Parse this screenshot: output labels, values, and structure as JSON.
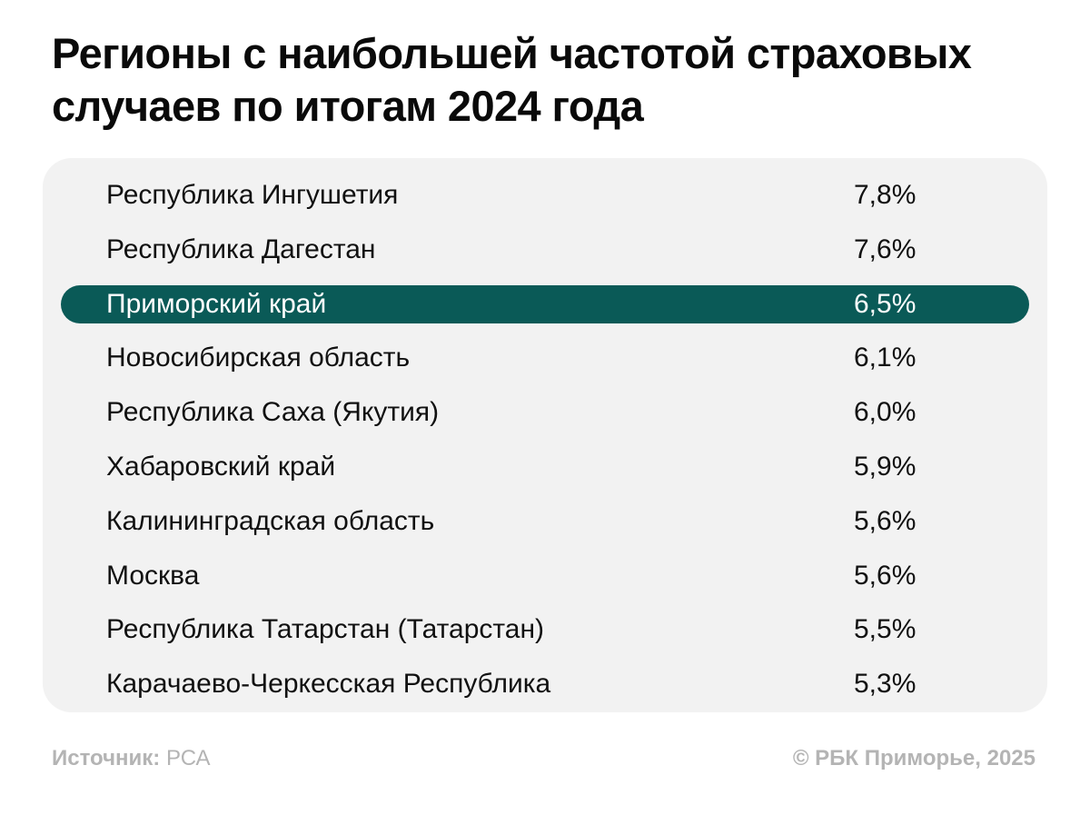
{
  "title": "Регионы с наибольшей частотой страховых случаев по итогам 2024 года",
  "colors": {
    "highlight_bg": "#0a5a57",
    "highlight_text": "#ffffff",
    "panel_bg": "#f2f2f2",
    "footer_text": "#b4b4b4"
  },
  "chart_data": {
    "type": "table",
    "title": "Регионы с наибольшей частотой страховых случаев по итогам 2024 года",
    "rows": [
      {
        "region": "Республика Ингушетия",
        "value": "7,8%",
        "highlight": false
      },
      {
        "region": "Республика Дагестан",
        "value": "7,6%",
        "highlight": false
      },
      {
        "region": "Приморский край",
        "value": "6,5%",
        "highlight": true
      },
      {
        "region": "Новосибирская область",
        "value": "6,1%",
        "highlight": false
      },
      {
        "region": "Республика Саха (Якутия)",
        "value": "6,0%",
        "highlight": false
      },
      {
        "region": "Хабаровский край",
        "value": "5,9%",
        "highlight": false
      },
      {
        "region": "Калининградская область",
        "value": "5,6%",
        "highlight": false
      },
      {
        "region": "Москва",
        "value": "5,6%",
        "highlight": false
      },
      {
        "region": "Республика Татарстан (Татарстан)",
        "value": "5,5%",
        "highlight": false
      },
      {
        "region": "Карачаево-Черкесская Республика",
        "value": "5,3%",
        "highlight": false
      }
    ]
  },
  "footer": {
    "source_label": "Источник:",
    "source_value": "РСА",
    "copyright": "© РБК Приморье, 2025"
  }
}
